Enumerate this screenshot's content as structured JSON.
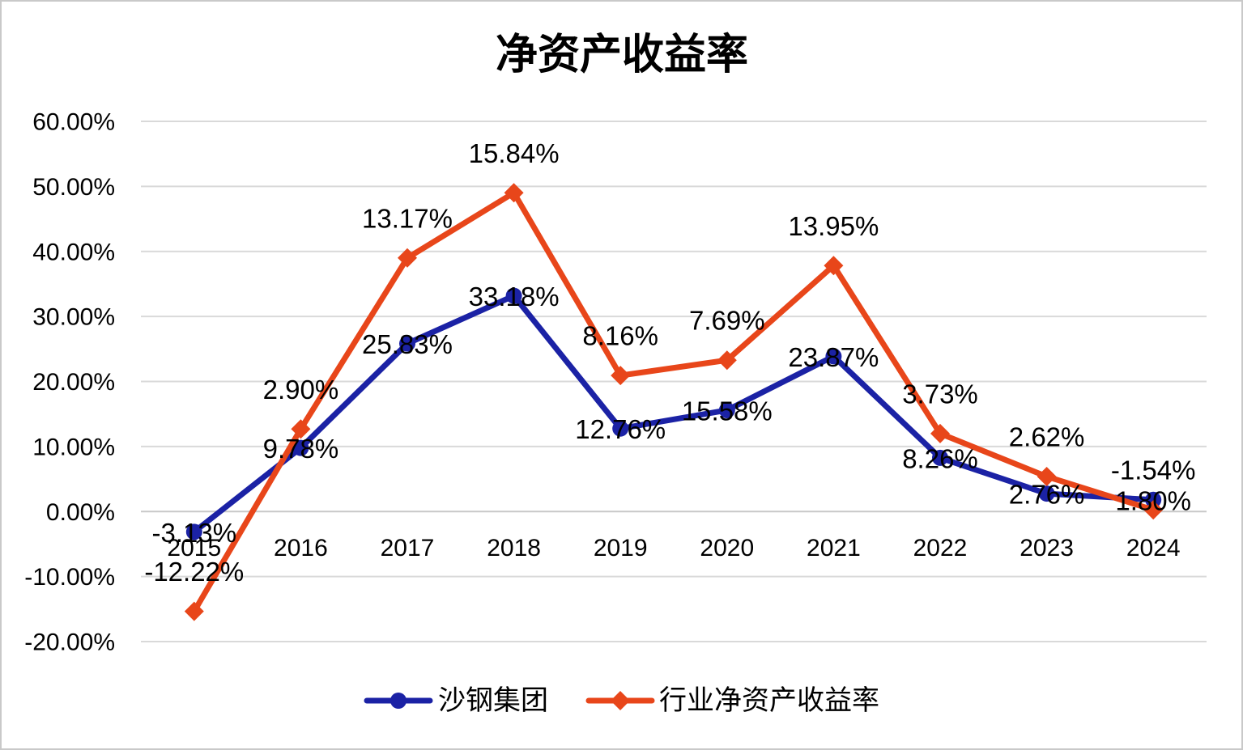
{
  "chart_data": {
    "type": "line",
    "stacked": true,
    "title": "净资产收益率",
    "xlabel": "",
    "ylabel": "",
    "categories": [
      "2015",
      "2016",
      "2017",
      "2018",
      "2019",
      "2020",
      "2021",
      "2022",
      "2023",
      "2024"
    ],
    "ylim": [
      -20,
      60
    ],
    "yticks": [
      60,
      50,
      40,
      30,
      20,
      10,
      0,
      -10,
      -20
    ],
    "ytick_labels": [
      "60.00%",
      "50.00%",
      "40.00%",
      "30.00%",
      "20.00%",
      "10.00%",
      "0.00%",
      "-10.00%",
      "-20.00%"
    ],
    "grid": true,
    "legend": "bottom",
    "series": [
      {
        "name": "沙钢集团",
        "color": "#1B22A5",
        "values": [
          -3.13,
          9.78,
          25.83,
          33.18,
          12.76,
          15.58,
          23.87,
          8.26,
          2.76,
          1.8
        ],
        "labels": [
          "-3.13%",
          "9.78%",
          "25.83%",
          "33.18%",
          "12.76%",
          "15.58%",
          "23.87%",
          "8.26%",
          "2.76%",
          "1.80%"
        ]
      },
      {
        "name": "行业净资产收益率",
        "color": "#E8461A",
        "values": [
          -12.22,
          2.9,
          13.17,
          15.84,
          8.16,
          7.69,
          13.95,
          3.73,
          2.62,
          -1.54
        ],
        "labels": [
          "-12.22%",
          "2.90%",
          "13.17%",
          "15.84%",
          "8.16%",
          "7.69%",
          "13.95%",
          "3.73%",
          "2.62%",
          "-1.54%"
        ]
      }
    ]
  }
}
